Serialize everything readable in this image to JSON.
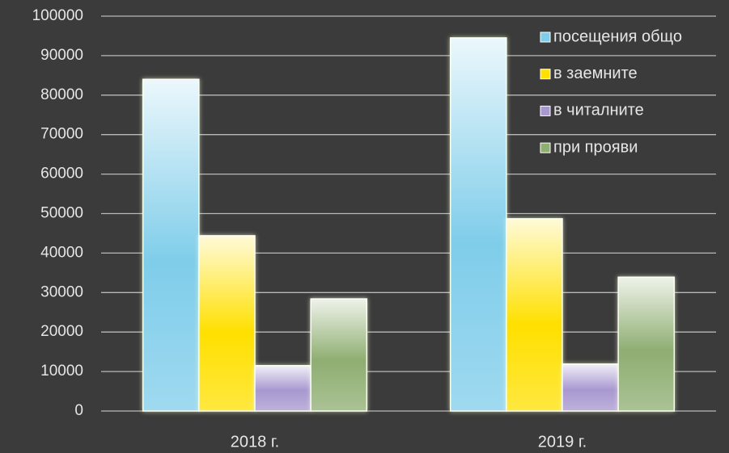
{
  "chart_data": {
    "type": "bar",
    "categories": [
      "2018 г.",
      "2019 г."
    ],
    "series": [
      {
        "name": "посещения общо",
        "color": "#7fcdea",
        "values": [
          84000,
          94500
        ]
      },
      {
        "name": "в заемните",
        "color": "#ffe000",
        "values": [
          44400,
          48700
        ]
      },
      {
        "name": "в читалните",
        "color": "#a898d0",
        "values": [
          11500,
          11900
        ]
      },
      {
        "name": "при прояви",
        "color": "#8fae72",
        "values": [
          28400,
          33900
        ]
      }
    ],
    "ylim": [
      0,
      100000
    ],
    "yticks": [
      0,
      10000,
      20000,
      30000,
      40000,
      50000,
      60000,
      70000,
      80000,
      90000,
      100000
    ],
    "grid": true,
    "legend": "right"
  }
}
